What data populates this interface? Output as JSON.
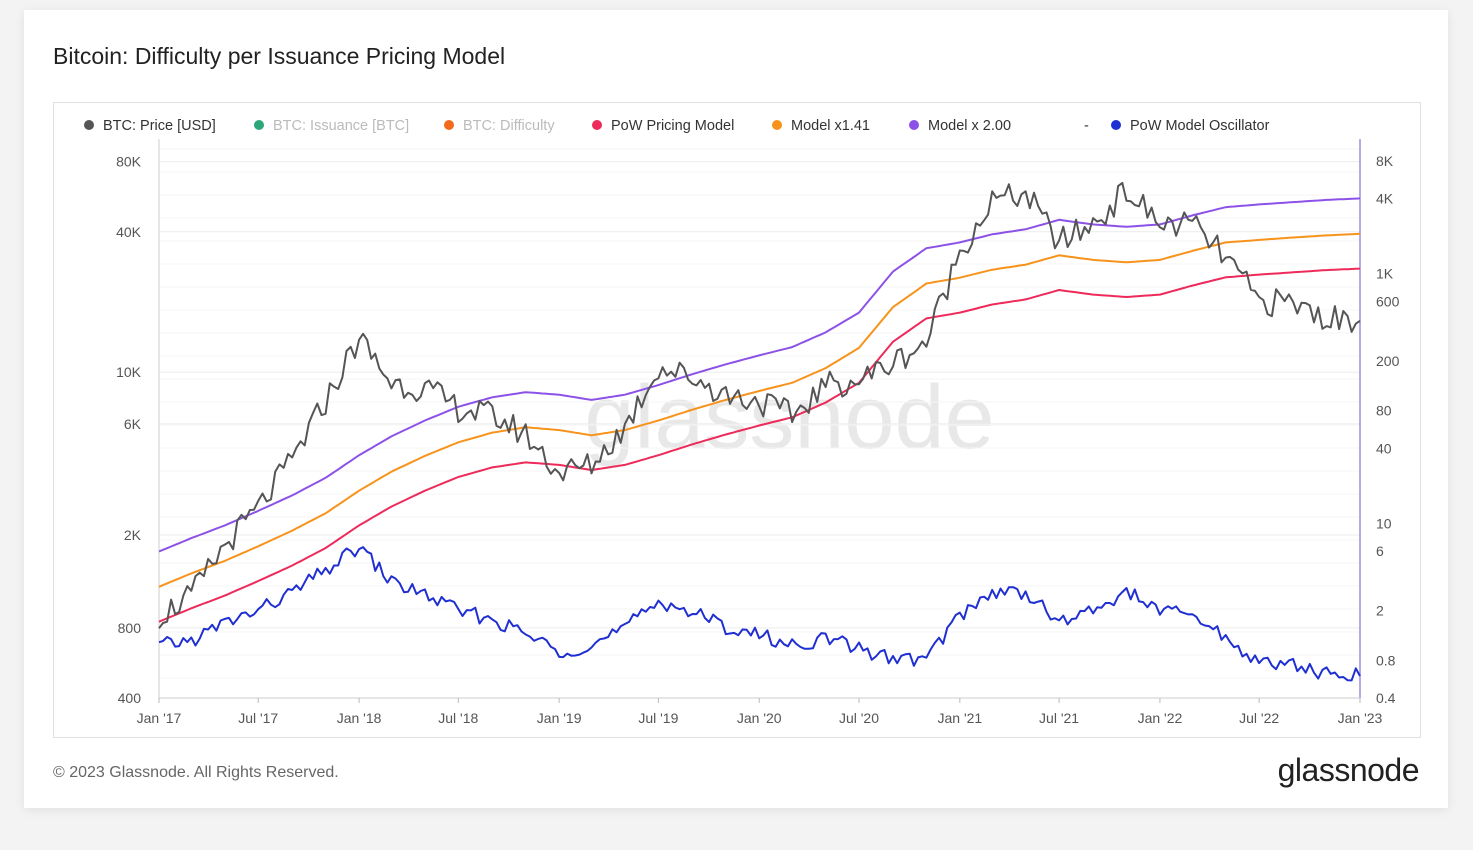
{
  "title": "Bitcoin: Difficulty per Issuance Pricing Model",
  "footer": "© 2023 Glassnode. All Rights Reserved.",
  "brand": "glassnode",
  "watermark": "glassnode",
  "colors": {
    "price": "#555555",
    "issuance": "#2ca77a",
    "difficulty": "#f26b1d",
    "pricing_model": "#ee2a5a",
    "model_141": "#f7931a",
    "model_200": "#8c52e8",
    "oscillator": "#1f2fd1",
    "right_axis": "#9a8fe8"
  },
  "chart_data": {
    "type": "line",
    "legend": [
      {
        "key": "price",
        "label": "BTC: Price [USD]",
        "color": "#555555",
        "dimmed": false
      },
      {
        "key": "issuance",
        "label": "BTC: Issuance [BTC]",
        "color": "#2ca77a",
        "dimmed": true
      },
      {
        "key": "difficulty",
        "label": "BTC: Difficulty",
        "color": "#f26b1d",
        "dimmed": true
      },
      {
        "key": "pricing_model",
        "label": "PoW Pricing Model",
        "color": "#ee2a5a",
        "dimmed": false
      },
      {
        "key": "model_141",
        "label": "Model x1.41",
        "color": "#f7931a",
        "dimmed": false
      },
      {
        "key": "model_200",
        "label": "Model x 2.00",
        "color": "#8c52e8",
        "dimmed": false
      },
      {
        "key": "dash",
        "label": "-",
        "color": "",
        "dimmed": false
      },
      {
        "key": "oscillator",
        "label": "PoW Model Oscillator",
        "color": "#1f2fd1",
        "dimmed": false
      }
    ],
    "legend_position": "top",
    "x_ticks": [
      "Jan '17",
      "Jul '17",
      "Jan '18",
      "Jul '18",
      "Jan '19",
      "Jul '19",
      "Jan '20",
      "Jul '20",
      "Jan '21",
      "Jul '21",
      "Jan '22",
      "Jul '22",
      "Jan '23"
    ],
    "x_range": [
      "2017-01-01",
      "2023-01-01"
    ],
    "y_left": {
      "scale": "log",
      "range": [
        400,
        100000
      ],
      "ticks": [
        "80K",
        "40K",
        "10K",
        "6K",
        "2K",
        "800",
        "400"
      ],
      "tick_values": [
        80000,
        40000,
        10000,
        6000,
        2000,
        800,
        400
      ]
    },
    "y_right": {
      "scale": "log",
      "range": [
        0.4,
        12000
      ],
      "ticks": [
        "8K",
        "4K",
        "1K",
        "600",
        "200",
        "80",
        "40",
        "10",
        "6",
        "2",
        "0.8",
        "0.4"
      ],
      "tick_values": [
        8000,
        4000,
        1000,
        600,
        200,
        80,
        40,
        10,
        6,
        2,
        0.8,
        0.4
      ]
    },
    "grid": true,
    "x": [
      "2017-01",
      "2017-03",
      "2017-05",
      "2017-07",
      "2017-09",
      "2017-11",
      "2018-01",
      "2018-03",
      "2018-05",
      "2018-07",
      "2018-09",
      "2018-11",
      "2019-01",
      "2019-03",
      "2019-05",
      "2019-07",
      "2019-09",
      "2019-11",
      "2020-01",
      "2020-03",
      "2020-05",
      "2020-07",
      "2020-09",
      "2020-11",
      "2021-01",
      "2021-03",
      "2021-05",
      "2021-07",
      "2021-09",
      "2021-11",
      "2022-01",
      "2022-03",
      "2022-05",
      "2022-07",
      "2022-09",
      "2022-11",
      "2023-01"
    ],
    "series": [
      {
        "name": "BTC: Price [USD]",
        "key": "price",
        "axis": "left",
        "values": [
          900,
          1100,
          1800,
          2600,
          4200,
          7500,
          14000,
          9000,
          8500,
          7000,
          6500,
          5400,
          3700,
          4000,
          5800,
          10500,
          9500,
          8000,
          7500,
          6500,
          8800,
          9200,
          11000,
          13500,
          33000,
          54000,
          58000,
          36000,
          43000,
          60000,
          43000,
          43000,
          31000,
          20000,
          19800,
          17000,
          16600
        ]
      },
      {
        "name": "PoW Pricing Model",
        "key": "pricing_model",
        "axis": "left",
        "values": [
          850,
          970,
          1100,
          1270,
          1480,
          1760,
          2200,
          2650,
          3100,
          3550,
          3900,
          4100,
          4000,
          3800,
          4000,
          4400,
          4900,
          5400,
          5900,
          6400,
          7400,
          9000,
          13500,
          17000,
          18000,
          19500,
          20500,
          22500,
          21500,
          21000,
          21500,
          23500,
          25500,
          26200,
          26800,
          27400,
          27800
        ]
      },
      {
        "name": "Model x1.41",
        "key": "model_141",
        "axis": "left",
        "values": [
          1200,
          1370,
          1550,
          1790,
          2090,
          2480,
          3100,
          3740,
          4370,
          5000,
          5500,
          5800,
          5640,
          5360,
          5640,
          6200,
          6900,
          7600,
          8300,
          9000,
          10400,
          12700,
          19000,
          24000,
          25400,
          27500,
          28900,
          31700,
          30300,
          29600,
          30300,
          33100,
          36000,
          36900,
          37800,
          38600,
          39200
        ]
      },
      {
        "name": "Model x 2.00",
        "key": "model_200",
        "axis": "left",
        "values": [
          1700,
          1940,
          2200,
          2540,
          2960,
          3520,
          4400,
          5300,
          6200,
          7100,
          7800,
          8200,
          8000,
          7600,
          8000,
          8800,
          9800,
          10800,
          11800,
          12800,
          14800,
          18000,
          27000,
          34000,
          36000,
          39000,
          41000,
          45000,
          43000,
          42000,
          43000,
          47000,
          51000,
          52400,
          53600,
          54800,
          55600
        ]
      },
      {
        "name": "PoW Model Oscillator",
        "key": "oscillator",
        "axis": "right",
        "values": [
          1.05,
          1.15,
          1.6,
          2.0,
          2.8,
          4.2,
          6.5,
          3.4,
          2.7,
          2.0,
          1.7,
          1.3,
          0.95,
          1.05,
          1.45,
          2.4,
          1.95,
          1.48,
          1.28,
          1.05,
          1.2,
          1.0,
          0.82,
          0.82,
          1.85,
          2.8,
          2.85,
          1.6,
          2.0,
          2.85,
          2.0,
          1.85,
          1.21,
          0.77,
          0.74,
          0.62,
          0.6
        ]
      }
    ]
  }
}
